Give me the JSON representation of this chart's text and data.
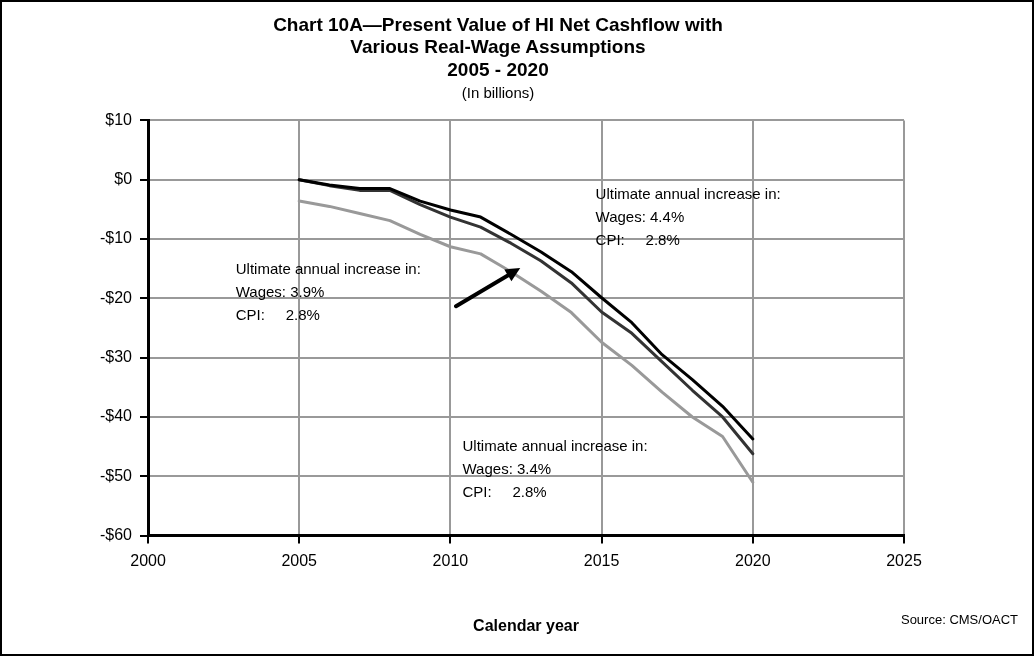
{
  "chart_data": {
    "type": "line",
    "title": "Chart 10A—Present Value of HI Net Cashflow with\nVarious Real-Wage Assumptions\n2005 - 2020",
    "subtitle": "(In billions)",
    "xlabel": "Calendar year",
    "x": [
      2005,
      2006,
      2007,
      2008,
      2009,
      2010,
      2011,
      2012,
      2013,
      2014,
      2015,
      2016,
      2017,
      2018,
      2019,
      2020
    ],
    "series": [
      {
        "color": "#000000",
        "values": [
          0,
          -0.9,
          -1.5,
          -1.5,
          -3.6,
          -5.1,
          -6.3,
          -9.2,
          -12.2,
          -15.5,
          -19.9,
          -24.1,
          -29.5,
          -33.7,
          -38.2,
          -43.7
        ]
      },
      {
        "color": "#333333",
        "values": [
          0,
          -1.0,
          -1.8,
          -1.8,
          -4.2,
          -6.3,
          -8.0,
          -10.7,
          -13.7,
          -17.4,
          -22.3,
          -25.9,
          -30.7,
          -35.5,
          -40.0,
          -46.2
        ]
      },
      {
        "color": "#999999",
        "values": [
          -3.6,
          -4.5,
          -5.7,
          -6.9,
          -9.2,
          -11.3,
          -12.5,
          -15.5,
          -18.8,
          -22.4,
          -27.4,
          -31.3,
          -35.8,
          -40.0,
          -43.3,
          -51.0
        ]
      }
    ],
    "xlim": [
      2000,
      2025
    ],
    "xticks": [
      2000,
      2005,
      2010,
      2015,
      2020,
      2025
    ],
    "ylim": [
      -60,
      10
    ],
    "yticks": [
      {
        "value": -60,
        "label": "-$60"
      },
      {
        "value": -50,
        "label": "-$50"
      },
      {
        "value": -40,
        "label": "-$40"
      },
      {
        "value": -30,
        "label": "-$30"
      },
      {
        "value": -20,
        "label": "-$20"
      },
      {
        "value": -10,
        "label": "-$10"
      },
      {
        "value": 0,
        "label": "$0"
      },
      {
        "value": 10,
        "label": "$10"
      }
    ],
    "grid": true,
    "legend": false,
    "marker": "none",
    "line_style": "solid",
    "annotations": [
      "Ultimate annual increase in:\nWages: 4.4%\nCPI:     2.8%",
      "Ultimate annual increase in:\nWages: 3.9%\nCPI:     2.8%",
      "Ultimate annual increase in:\nWages: 3.4%\nCPI:     2.8%",
      "Source: CMS/OACT"
    ]
  }
}
